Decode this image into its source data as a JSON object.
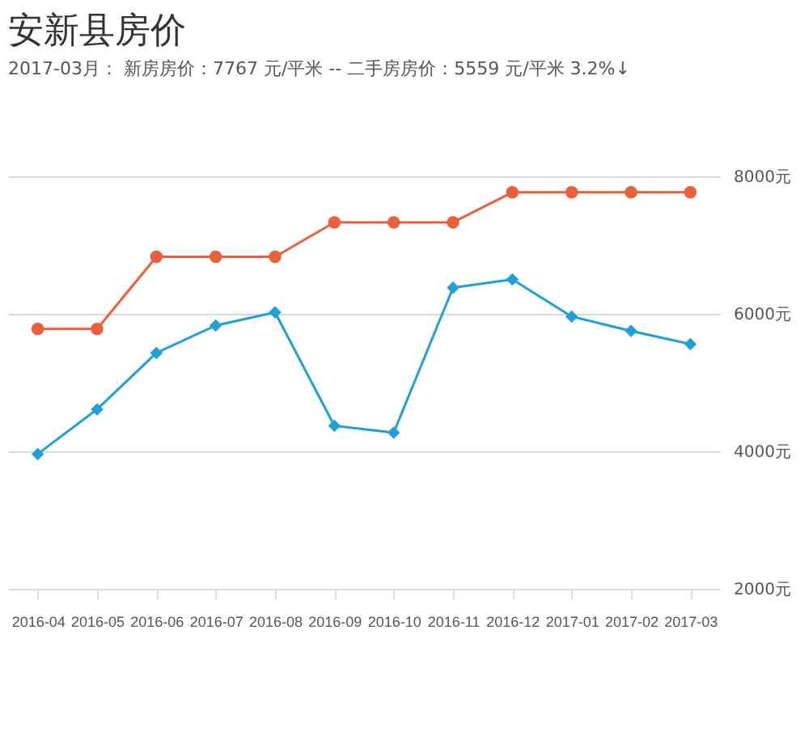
{
  "chart_data": {
    "type": "line",
    "title": "安新县房价",
    "subtitle": "2017-03月：  新房房价：7767 元/平米  --  二手房房价：5559 元/平米  3.2%↓",
    "categories": [
      "2016-04",
      "2016-05",
      "2016-06",
      "2016-07",
      "2016-08",
      "2016-09",
      "2016-10",
      "2016-11",
      "2016-12",
      "2017-01",
      "2017-02",
      "2017-03"
    ],
    "series": [
      {
        "color": "#e8603c",
        "marker": "circle",
        "values": [
          5780,
          5780,
          6830,
          6830,
          6830,
          7330,
          7330,
          7330,
          7767,
          7767,
          7767,
          7767
        ]
      },
      {
        "color": "#1fa0d8",
        "marker": "diamond",
        "values": [
          3960,
          4610,
          5430,
          5830,
          6020,
          4370,
          4270,
          6380,
          6500,
          5960,
          5750,
          5559
        ]
      }
    ],
    "ylim": [
      2000,
      8000
    ],
    "yticks": [
      {
        "value": 2000,
        "label": "2000元"
      },
      {
        "value": 4000,
        "label": "4000元"
      },
      {
        "value": 6000,
        "label": "6000元"
      },
      {
        "value": 8000,
        "label": "8000元"
      }
    ],
    "grid": "y"
  }
}
